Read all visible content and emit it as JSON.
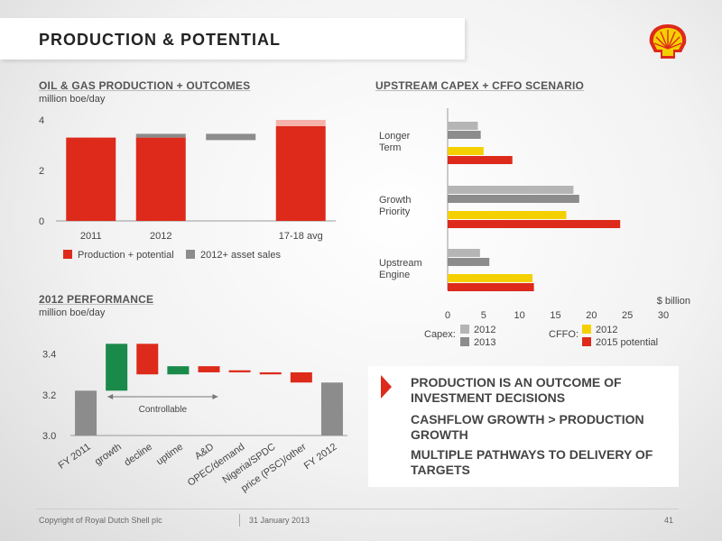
{
  "title": "PRODUCTION & POTENTIAL",
  "sections": {
    "oil_gas": {
      "title": "OIL & GAS PRODUCTION + OUTCOMES",
      "unit": "million boe/day"
    },
    "capex": {
      "title": "UPSTREAM CAPEX + CFFO SCENARIO"
    },
    "performance": {
      "title": "2012 PERFORMANCE",
      "unit": "million boe/day"
    }
  },
  "messages": [
    "PRODUCTION IS AN OUTCOME OF INVESTMENT DECISIONS",
    "CASHFLOW GROWTH > PRODUCTION GROWTH",
    "MULTIPLE PATHWAYS TO DELIVERY OF TARGETS"
  ],
  "footer": {
    "copyright": "Copyright of Royal Dutch Shell plc",
    "date": "31 January 2013",
    "page": "41"
  },
  "colors": {
    "red": "#dd2a1b",
    "gray": "#8c8c8c",
    "lightgray": "#b5b5b5",
    "yellow": "#f5d000",
    "green": "#1a8a4a"
  },
  "chart_data": [
    {
      "type": "bar",
      "title": "OIL & GAS PRODUCTION + OUTCOMES",
      "ylabel": "million boe/day",
      "ylim": [
        0,
        4
      ],
      "yticks": [
        "0",
        "2",
        "4"
      ],
      "categories": [
        "2011",
        "2012",
        "",
        "17-18 avg"
      ],
      "series": [
        {
          "name": "Production + potential",
          "color": "#dd2a1b",
          "values": [
            3.3,
            3.3,
            null,
            3.75
          ]
        },
        {
          "name": "2012+ asset sales",
          "color": "#8c8c8c",
          "floating": [
            null,
            [
              3.3,
              3.45
            ],
            [
              3.2,
              3.45
            ],
            null
          ]
        }
      ],
      "legend": [
        "Production + potential",
        "2012+ asset sales"
      ]
    },
    {
      "type": "bar",
      "orientation": "horizontal",
      "title": "UPSTREAM CAPEX + CFFO SCENARIO",
      "xlabel": "$ billion",
      "xlim": [
        0,
        30
      ],
      "xticks": [
        "0",
        "5",
        "10",
        "15",
        "20",
        "25",
        "30"
      ],
      "categories": [
        "Longer Term",
        "Growth Priority",
        "Upstream Engine"
      ],
      "series": [
        {
          "name": "Capex 2012",
          "color": "#b5b5b5",
          "values": [
            4.2,
            17.5,
            4.5
          ]
        },
        {
          "name": "Capex 2013",
          "color": "#8c8c8c",
          "values": [
            4.6,
            18.3,
            5.8
          ]
        },
        {
          "name": "CFFO 2012",
          "color": "#f5d000",
          "values": [
            5.0,
            16.5,
            11.8
          ]
        },
        {
          "name": "CFFO 2015 potential",
          "color": "#dd2a1b",
          "values": [
            9.0,
            24.0,
            12.0
          ]
        }
      ],
      "legend": {
        "capex_label": "Capex:",
        "cffo_label": "CFFO:",
        "capex": [
          "2012",
          "2013"
        ],
        "cffo": [
          "2012",
          "2015 potential"
        ]
      }
    },
    {
      "type": "waterfall",
      "title": "2012 PERFORMANCE",
      "ylabel": "million boe/day",
      "ylim": [
        3.0,
        3.5
      ],
      "yticks": [
        "3.0",
        "3.2",
        "3.4"
      ],
      "categories": [
        "FY 2011",
        "growth",
        "decline",
        "uptime",
        "A&D",
        "OPEC/demand",
        "Nigeria/SPDC",
        "price (PSC)/other",
        "FY 2012"
      ],
      "ranges": [
        [
          3.0,
          3.22
        ],
        [
          3.22,
          3.45
        ],
        [
          3.3,
          3.45
        ],
        [
          3.3,
          3.34
        ],
        [
          3.31,
          3.34
        ],
        [
          3.31,
          3.32
        ],
        [
          3.3,
          3.31
        ],
        [
          3.26,
          3.31
        ],
        [
          3.0,
          3.26
        ]
      ],
      "colors": [
        "#8c8c8c",
        "#1a8a4a",
        "#dd2a1b",
        "#1a8a4a",
        "#dd2a1b",
        "#dd2a1b",
        "#dd2a1b",
        "#dd2a1b",
        "#8c8c8c"
      ],
      "annotation": "Controllable"
    }
  ]
}
